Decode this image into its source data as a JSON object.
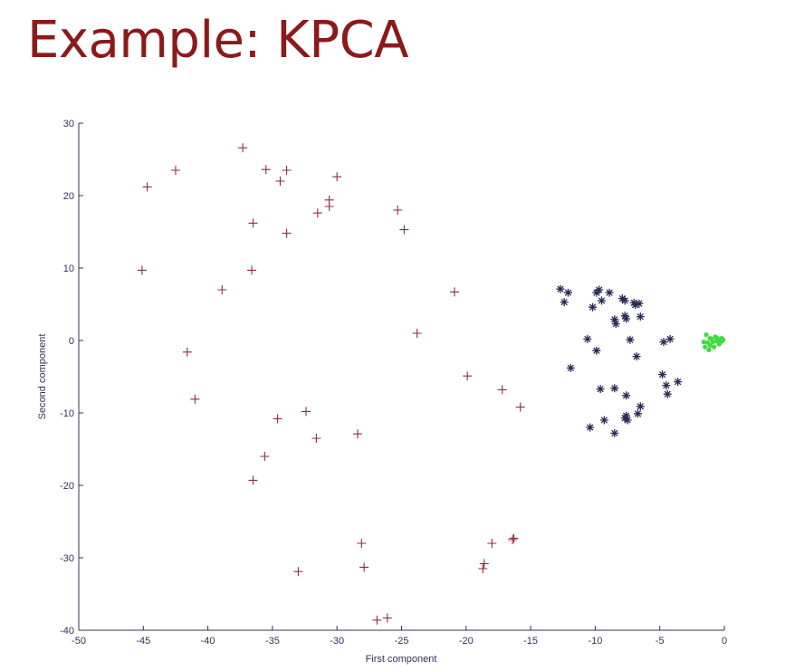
{
  "slide": {
    "title": "Example: KPCA"
  },
  "chart_data": {
    "type": "scatter",
    "xlabel": "First component",
    "ylabel": "Second component",
    "xlim": [
      -50,
      0
    ],
    "ylim": [
      -40,
      30
    ],
    "xticks": [
      -50,
      -45,
      -40,
      -35,
      -30,
      -25,
      -20,
      -15,
      -10,
      -5,
      0
    ],
    "yticks": [
      -40,
      -30,
      -20,
      -10,
      0,
      10,
      20,
      30
    ],
    "grid": false,
    "series": [
      {
        "marker": "plus",
        "color": "#8b2f3a",
        "points": [
          [
            -37.3,
            26.6
          ],
          [
            -42.5,
            23.5
          ],
          [
            -35.5,
            23.6
          ],
          [
            -33.9,
            23.5
          ],
          [
            -44.7,
            21.2
          ],
          [
            -34.4,
            22.0
          ],
          [
            -30.0,
            22.6
          ],
          [
            -30.6,
            19.4
          ],
          [
            -30.6,
            18.5
          ],
          [
            -31.5,
            17.6
          ],
          [
            -36.5,
            16.2
          ],
          [
            -33.9,
            14.8
          ],
          [
            -25.3,
            18.0
          ],
          [
            -24.8,
            15.3
          ],
          [
            -45.1,
            9.7
          ],
          [
            -36.6,
            9.7
          ],
          [
            -38.9,
            7.0
          ],
          [
            -20.9,
            6.7
          ],
          [
            -23.8,
            1.0
          ],
          [
            -41.6,
            -1.6
          ],
          [
            -41.0,
            -8.1
          ],
          [
            -19.9,
            -4.9
          ],
          [
            -17.2,
            -6.8
          ],
          [
            -15.8,
            -9.2
          ],
          [
            -32.4,
            -9.8
          ],
          [
            -34.6,
            -10.8
          ],
          [
            -28.4,
            -12.9
          ],
          [
            -31.6,
            -13.5
          ],
          [
            -35.6,
            -16.0
          ],
          [
            -36.5,
            -19.3
          ],
          [
            -28.1,
            -28.0
          ],
          [
            -27.9,
            -31.3
          ],
          [
            -33.0,
            -31.9
          ],
          [
            -18.0,
            -28.0
          ],
          [
            -16.3,
            -27.3
          ],
          [
            -16.4,
            -27.5
          ],
          [
            -18.6,
            -30.8
          ],
          [
            -18.7,
            -31.5
          ],
          [
            -26.9,
            -38.6
          ],
          [
            -26.1,
            -38.3
          ]
        ]
      },
      {
        "marker": "star",
        "color": "#2a2a55",
        "points": [
          [
            -12.7,
            7.1
          ],
          [
            -12.4,
            5.3
          ],
          [
            -12.1,
            6.6
          ],
          [
            -9.9,
            6.6
          ],
          [
            -9.7,
            7.0
          ],
          [
            -9.5,
            5.5
          ],
          [
            -8.9,
            6.6
          ],
          [
            -7.9,
            5.8
          ],
          [
            -7.7,
            5.5
          ],
          [
            -7.0,
            5.2
          ],
          [
            -6.9,
            4.9
          ],
          [
            -6.6,
            5.1
          ],
          [
            -10.2,
            4.6
          ],
          [
            -7.7,
            3.4
          ],
          [
            -7.6,
            3.0
          ],
          [
            -8.5,
            2.9
          ],
          [
            -8.4,
            2.3
          ],
          [
            -6.5,
            3.3
          ],
          [
            -10.6,
            0.2
          ],
          [
            -7.3,
            0.1
          ],
          [
            -9.9,
            -1.4
          ],
          [
            -6.8,
            -2.2
          ],
          [
            -4.7,
            -0.2
          ],
          [
            -4.2,
            0.2
          ],
          [
            -11.9,
            -3.8
          ],
          [
            -4.8,
            -4.7
          ],
          [
            -4.5,
            -6.2
          ],
          [
            -4.4,
            -7.4
          ],
          [
            -3.6,
            -5.7
          ],
          [
            -9.6,
            -6.7
          ],
          [
            -8.5,
            -6.6
          ],
          [
            -7.6,
            -7.6
          ],
          [
            -6.5,
            -9.1
          ],
          [
            -6.7,
            -10.1
          ],
          [
            -9.3,
            -11.0
          ],
          [
            -7.6,
            -10.4
          ],
          [
            -7.5,
            -11.0
          ],
          [
            -7.7,
            -10.7
          ],
          [
            -10.4,
            -12.0
          ],
          [
            -8.5,
            -12.8
          ]
        ]
      },
      {
        "marker": "dot",
        "color": "#3fdc3f",
        "points": [
          [
            -1.4,
            0.8
          ],
          [
            -1.1,
            0.3
          ],
          [
            -0.9,
            -0.2
          ],
          [
            -0.7,
            0.5
          ],
          [
            -0.5,
            0.2
          ],
          [
            -0.3,
            0.0
          ],
          [
            -0.2,
            -0.1
          ],
          [
            -0.4,
            -0.5
          ],
          [
            -0.8,
            -0.9
          ],
          [
            -1.2,
            -1.3
          ],
          [
            -1.5,
            -0.9
          ],
          [
            -1.3,
            -0.3
          ],
          [
            -0.6,
            -0.1
          ],
          [
            -1.0,
            0.2
          ],
          [
            -0.1,
            0.1
          ],
          [
            -0.6,
            0.4
          ],
          [
            -1.6,
            -0.2
          ],
          [
            -1.1,
            -0.7
          ],
          [
            -0.4,
            -0.3
          ],
          [
            -0.2,
            0.3
          ]
        ]
      }
    ]
  }
}
